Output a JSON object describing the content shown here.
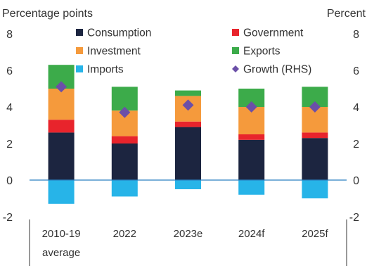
{
  "chart_data": {
    "type": "bar",
    "stacked": true,
    "categories": [
      "2010-19 average",
      "2022",
      "2023e",
      "2024f",
      "2025f"
    ],
    "category_lines": [
      [
        "2010-19",
        "average"
      ],
      [
        "2022"
      ],
      [
        "2023e"
      ],
      [
        "2024f"
      ],
      [
        "2025f"
      ]
    ],
    "left_axis_label": "Percentage points",
    "right_axis_label": "Percent",
    "ylim": [
      -2,
      8
    ],
    "yticks": [
      -2,
      0,
      2,
      4,
      6,
      8
    ],
    "series": [
      {
        "name": "Consumption",
        "color": "#1c2540",
        "values": [
          2.6,
          2.0,
          2.9,
          2.2,
          2.3
        ]
      },
      {
        "name": "Government",
        "color": "#e8242c",
        "values": [
          0.7,
          0.4,
          0.3,
          0.3,
          0.3
        ]
      },
      {
        "name": "Investment",
        "color": "#f59a3c",
        "values": [
          1.7,
          1.4,
          1.4,
          1.5,
          1.4
        ]
      },
      {
        "name": "Exports",
        "color": "#3cab4a",
        "values": [
          1.3,
          1.3,
          0.3,
          1.0,
          1.1
        ]
      },
      {
        "name": "Imports",
        "color": "#27b4e8",
        "values": [
          -1.3,
          -0.9,
          -0.5,
          -0.8,
          -1.0
        ]
      }
    ],
    "growth": {
      "name": "Growth (RHS)",
      "color": "#6b4fa8",
      "values": [
        5.1,
        3.7,
        4.1,
        4.0,
        4.0
      ]
    },
    "legend_order": [
      "Consumption",
      "Government",
      "Investment",
      "Exports",
      "Imports",
      "Growth (RHS)"
    ],
    "grid": false,
    "legend_position": "top"
  }
}
